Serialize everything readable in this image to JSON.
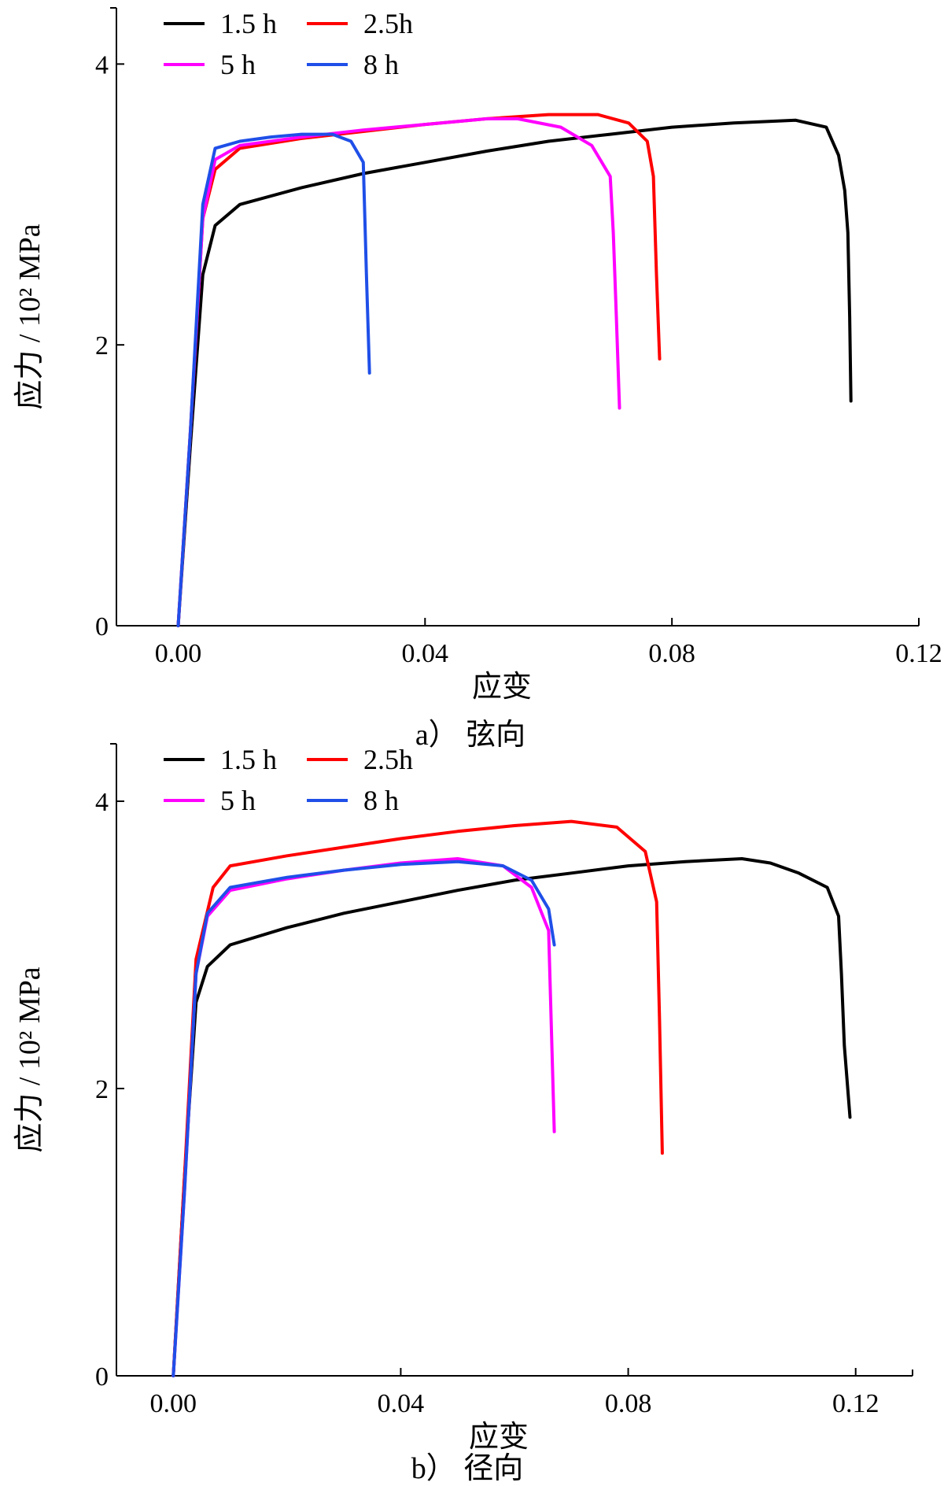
{
  "chart_data": [
    {
      "type": "line",
      "caption": "a） 弦向",
      "xlabel": "应变",
      "ylabel": "应力 / 10² MPa",
      "xlim": [
        -0.01,
        0.12
      ],
      "ylim": [
        0,
        4.4
      ],
      "xticks": [
        "0.00",
        "0.04",
        "0.08",
        "0.12"
      ],
      "yticks": [
        "0",
        "2",
        "4"
      ],
      "legend": {
        "placement": "top-left"
      },
      "series": [
        {
          "name": "1.5 h",
          "color": "#000000",
          "x": [
            0,
            0.002,
            0.004,
            0.006,
            0.01,
            0.02,
            0.03,
            0.04,
            0.05,
            0.06,
            0.07,
            0.08,
            0.09,
            0.1,
            0.105,
            0.107,
            0.108,
            0.1085,
            0.1088,
            0.109
          ],
          "y": [
            0,
            1.3,
            2.5,
            2.85,
            3.0,
            3.12,
            3.22,
            3.3,
            3.38,
            3.45,
            3.5,
            3.55,
            3.58,
            3.6,
            3.55,
            3.35,
            3.1,
            2.8,
            2.2,
            1.6
          ]
        },
        {
          "name": "2.5h",
          "color": "#ff0000",
          "x": [
            0,
            0.002,
            0.004,
            0.006,
            0.01,
            0.02,
            0.03,
            0.04,
            0.05,
            0.06,
            0.068,
            0.073,
            0.076,
            0.077,
            0.0775,
            0.078
          ],
          "y": [
            0,
            1.4,
            2.9,
            3.25,
            3.4,
            3.47,
            3.52,
            3.57,
            3.61,
            3.64,
            3.64,
            3.58,
            3.45,
            3.2,
            2.5,
            1.9
          ]
        },
        {
          "name": "5 h",
          "color": "#ff00ff",
          "x": [
            0,
            0.002,
            0.004,
            0.006,
            0.01,
            0.02,
            0.03,
            0.04,
            0.05,
            0.055,
            0.062,
            0.067,
            0.07,
            0.0705,
            0.071,
            0.0715
          ],
          "y": [
            0,
            1.4,
            2.9,
            3.32,
            3.42,
            3.48,
            3.53,
            3.57,
            3.61,
            3.61,
            3.55,
            3.42,
            3.2,
            2.8,
            2.2,
            1.55
          ]
        },
        {
          "name": "8 h",
          "color": "#1f4fe8",
          "x": [
            0,
            0.002,
            0.004,
            0.006,
            0.01,
            0.015,
            0.02,
            0.025,
            0.028,
            0.03,
            0.0305,
            0.031
          ],
          "y": [
            0,
            1.4,
            3.0,
            3.4,
            3.45,
            3.48,
            3.5,
            3.5,
            3.45,
            3.3,
            2.5,
            1.8
          ]
        }
      ]
    },
    {
      "type": "line",
      "caption": "b） 径向",
      "xlabel": "应变",
      "ylabel": "应力 / 10² MPa",
      "xlim": [
        -0.01,
        0.13
      ],
      "ylim": [
        0,
        4.4
      ],
      "xticks": [
        "0.00",
        "0.04",
        "0.08",
        "0.12"
      ],
      "yticks": [
        "0",
        "2",
        "4"
      ],
      "legend": {
        "placement": "top-left"
      },
      "series": [
        {
          "name": "1.5 h",
          "color": "#000000",
          "x": [
            0,
            0.002,
            0.004,
            0.006,
            0.01,
            0.02,
            0.03,
            0.04,
            0.05,
            0.06,
            0.07,
            0.08,
            0.09,
            0.1,
            0.105,
            0.11,
            0.115,
            0.117,
            0.1175,
            0.118,
            0.119
          ],
          "y": [
            0,
            1.4,
            2.6,
            2.85,
            3.0,
            3.12,
            3.22,
            3.3,
            3.38,
            3.45,
            3.5,
            3.55,
            3.58,
            3.6,
            3.57,
            3.5,
            3.4,
            3.2,
            2.8,
            2.3,
            1.8
          ]
        },
        {
          "name": "2.5h",
          "color": "#ff0000",
          "x": [
            0,
            0.002,
            0.004,
            0.007,
            0.01,
            0.02,
            0.03,
            0.04,
            0.05,
            0.06,
            0.07,
            0.078,
            0.083,
            0.085,
            0.0855,
            0.086
          ],
          "y": [
            0,
            1.4,
            2.9,
            3.4,
            3.55,
            3.62,
            3.68,
            3.74,
            3.79,
            3.83,
            3.86,
            3.82,
            3.65,
            3.3,
            2.5,
            1.55
          ]
        },
        {
          "name": "5 h",
          "color": "#ff00ff",
          "x": [
            0,
            0.002,
            0.004,
            0.006,
            0.01,
            0.02,
            0.03,
            0.04,
            0.05,
            0.058,
            0.063,
            0.066,
            0.0665,
            0.067
          ],
          "y": [
            0,
            1.3,
            2.8,
            3.2,
            3.38,
            3.46,
            3.52,
            3.57,
            3.6,
            3.55,
            3.4,
            3.1,
            2.4,
            1.7
          ]
        },
        {
          "name": "8 h",
          "color": "#1f4fe8",
          "x": [
            0,
            0.002,
            0.004,
            0.006,
            0.01,
            0.02,
            0.03,
            0.04,
            0.05,
            0.058,
            0.063,
            0.066,
            0.067
          ],
          "y": [
            0,
            1.3,
            2.8,
            3.22,
            3.4,
            3.47,
            3.52,
            3.56,
            3.58,
            3.55,
            3.45,
            3.25,
            3.0
          ]
        }
      ]
    }
  ]
}
